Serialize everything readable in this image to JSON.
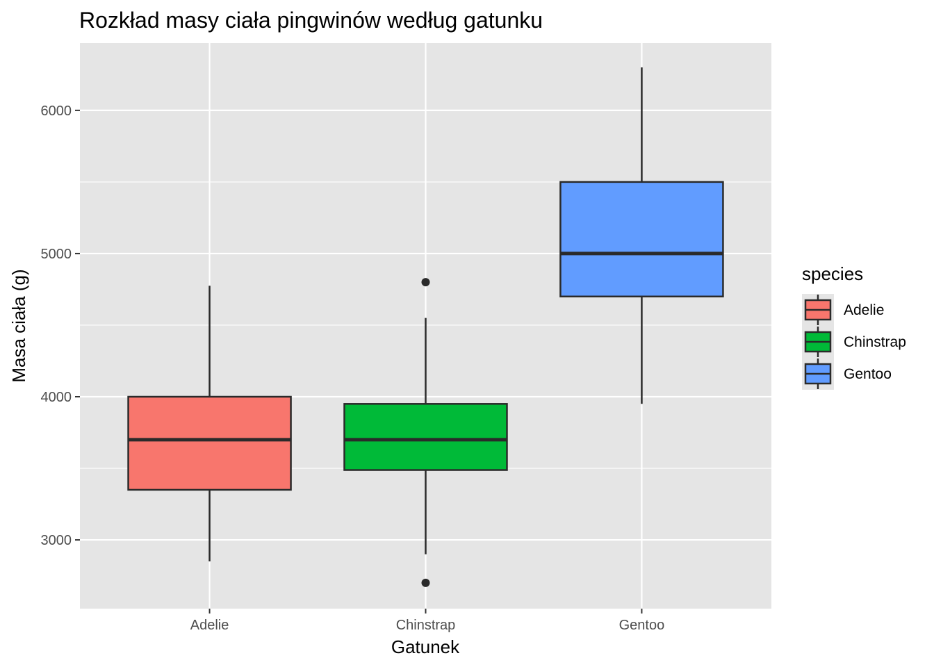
{
  "chart_data": {
    "type": "boxplot",
    "title": "Rozkład masy ciała pingwinów według gatunku",
    "xlabel": "Gatunek",
    "ylabel": "Masa ciała (g)",
    "categories": [
      "Adelie",
      "Chinstrap",
      "Gentoo"
    ],
    "ylim": [
      2520,
      6470
    ],
    "yticks": [
      3000,
      4000,
      5000,
      6000
    ],
    "grid": true,
    "legend": {
      "title": "species",
      "position": "right",
      "entries": [
        "Adelie",
        "Chinstrap",
        "Gentoo"
      ]
    },
    "boxes": [
      {
        "name": "Adelie",
        "whisker_low": 2850,
        "q1": 3350,
        "median": 3700,
        "q3": 4000,
        "whisker_high": 4775,
        "outliers": [],
        "color": "#F8766D"
      },
      {
        "name": "Chinstrap",
        "whisker_low": 2900,
        "q1": 3488,
        "median": 3700,
        "q3": 3950,
        "whisker_high": 4550,
        "outliers": [
          4800,
          2700
        ],
        "color": "#00BA38"
      },
      {
        "name": "Gentoo",
        "whisker_low": 3950,
        "q1": 4700,
        "median": 5000,
        "q3": 5500,
        "whisker_high": 6300,
        "outliers": [],
        "color": "#619CFF"
      }
    ]
  },
  "colors": {
    "panel_bg": "#E5E5E5",
    "grid": "#FFFFFF",
    "box_stroke": "#2A2A2A"
  }
}
